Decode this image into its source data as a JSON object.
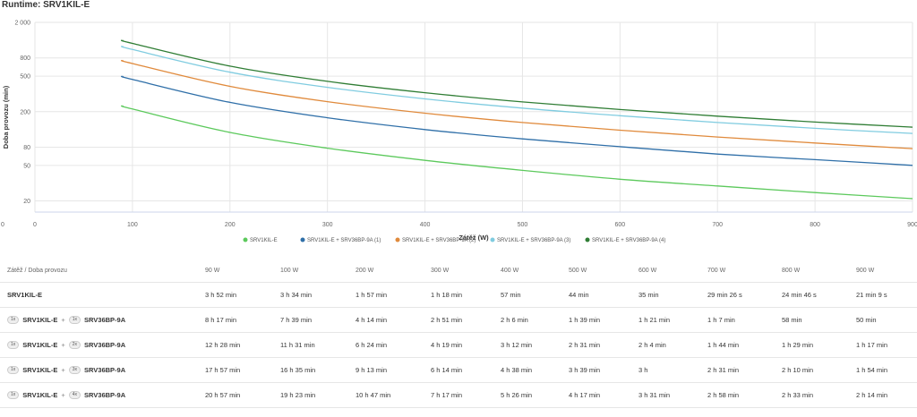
{
  "title": "Runtime: SRV1KIL-E",
  "chart_data": {
    "type": "line",
    "xlabel": "Zátěž (W)",
    "ylabel": "Doba provozu (min)",
    "xlim": [
      0,
      900
    ],
    "ylim": [
      15,
      2000
    ],
    "yscale": "log",
    "x_ticks": [
      "0",
      "100",
      "200",
      "300",
      "400",
      "500",
      "600",
      "700",
      "800",
      "900"
    ],
    "y_ticks": [
      "20",
      "50",
      "80",
      "200",
      "500",
      "800",
      "2 000"
    ],
    "y_tick_values": [
      20,
      50,
      80,
      200,
      500,
      800,
      2000
    ],
    "grid": true,
    "legend_position": "bottom",
    "x": [
      90,
      100,
      200,
      300,
      400,
      500,
      600,
      700,
      800,
      900
    ],
    "series": [
      {
        "name": "SRV1KIL-E",
        "color": "#5cc95c",
        "values": [
          232,
          214,
          117,
          78,
          57,
          44,
          35,
          29.4,
          24.8,
          21.2
        ]
      },
      {
        "name": "SRV1KIL-E + SRV36BP-9A (1)",
        "color": "#2f6fa8",
        "values": [
          497,
          459,
          254,
          171,
          126,
          99,
          81,
          67,
          58,
          50
        ]
      },
      {
        "name": "SRV1KIL-E + SRV36BP-9A (2)",
        "color": "#e08a3c",
        "values": [
          748,
          691,
          384,
          259,
          192,
          151,
          124,
          104,
          89,
          77
        ]
      },
      {
        "name": "SRV1KIL-E + SRV36BP-9A (3)",
        "color": "#80cce0",
        "values": [
          1077,
          995,
          553,
          374,
          278,
          219,
          180,
          151,
          130,
          114
        ]
      },
      {
        "name": "SRV1KIL-E + SRV36BP-9A (4)",
        "color": "#2f7d34",
        "values": [
          1257,
          1163,
          647,
          437,
          326,
          257,
          211,
          178,
          153,
          134
        ]
      }
    ]
  },
  "table": {
    "header_label": "Zátěž / Doba provozu",
    "columns": [
      "90 W",
      "100 W",
      "200 W",
      "300 W",
      "400 W",
      "500 W",
      "600 W",
      "700 W",
      "800 W",
      "900 W"
    ],
    "rows": [
      {
        "name": "SRV1KIL-E",
        "values": [
          "3 h 52 min",
          "3 h 34 min",
          "1 h 57 min",
          "1 h 18 min",
          "57 min",
          "44 min",
          "35 min",
          "29 min 26 s",
          "24 min 46 s",
          "21 min 9 s"
        ]
      },
      {
        "qty1": "1x",
        "name": "SRV1KIL-E",
        "plus": "+",
        "qty2": "1x",
        "name2": "SRV36BP-9A",
        "values": [
          "8 h 17 min",
          "7 h 39 min",
          "4 h 14 min",
          "2 h 51 min",
          "2 h 6 min",
          "1 h 39 min",
          "1 h 21 min",
          "1 h 7 min",
          "58 min",
          "50 min"
        ]
      },
      {
        "qty1": "1x",
        "name": "SRV1KIL-E",
        "plus": "+",
        "qty2": "2x",
        "name2": "SRV36BP-9A",
        "values": [
          "12 h 28 min",
          "11 h 31 min",
          "6 h 24 min",
          "4 h 19 min",
          "3 h 12 min",
          "2 h 31 min",
          "2 h 4 min",
          "1 h 44 min",
          "1 h 29 min",
          "1 h 17 min"
        ]
      },
      {
        "qty1": "1x",
        "name": "SRV1KIL-E",
        "plus": "+",
        "qty2": "3x",
        "name2": "SRV36BP-9A",
        "values": [
          "17 h 57 min",
          "16 h 35 min",
          "9 h 13 min",
          "6 h 14 min",
          "4 h 38 min",
          "3 h 39 min",
          "3 h",
          "2 h 31 min",
          "2 h 10 min",
          "1 h 54 min"
        ]
      },
      {
        "qty1": "1x",
        "name": "SRV1KIL-E",
        "plus": "+",
        "qty2": "4x",
        "name2": "SRV36BP-9A",
        "values": [
          "20 h 57 min",
          "19 h 23 min",
          "10 h 47 min",
          "7 h 17 min",
          "5 h 26 min",
          "4 h 17 min",
          "3 h 31 min",
          "2 h 58 min",
          "2 h 33 min",
          "2 h 14 min"
        ]
      }
    ]
  }
}
